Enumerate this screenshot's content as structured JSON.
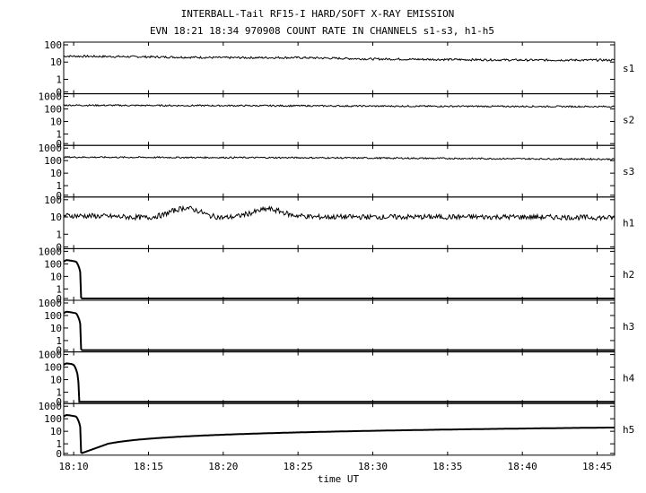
{
  "header": {
    "line1": "INTERBALL-Tail RF15-I HARD/SOFT X-RAY EMISSION",
    "line2": "EVN 18:21 18:34 970908  COUNT RATE IN CHANNELS s1-s3, h1-h5"
  },
  "chart_data": {
    "type": "line",
    "xlabel": "time UT",
    "x_ticks": [
      "18:10",
      "18:15",
      "18:20",
      "18:25",
      "18:30",
      "18:35",
      "18:40",
      "18:45"
    ],
    "xlim": [
      "18:09:20",
      "18:46:10"
    ],
    "yscale": "log",
    "grid": false,
    "panels": [
      {
        "name": "s1",
        "ylim": [
          0,
          100
        ],
        "y_ticks": [
          "100",
          "10",
          "1",
          "0"
        ],
        "x": [
          "18:09:20",
          "18:15",
          "18:20",
          "18:25",
          "18:30",
          "18:35",
          "18:40",
          "18:46:10"
        ],
        "values": [
          22,
          20,
          18,
          18,
          15,
          14,
          13,
          13
        ]
      },
      {
        "name": "s2",
        "ylim": [
          0,
          1000
        ],
        "y_ticks": [
          "1000",
          "100",
          "10",
          "1",
          "0"
        ],
        "x": [
          "18:09:20",
          "18:15",
          "18:20",
          "18:25",
          "18:30",
          "18:35",
          "18:40",
          "18:46:10"
        ],
        "values": [
          200,
          190,
          185,
          180,
          170,
          165,
          160,
          155
        ]
      },
      {
        "name": "s3",
        "ylim": [
          0,
          1000
        ],
        "y_ticks": [
          "1000",
          "100",
          "10",
          "1",
          "0"
        ],
        "x": [
          "18:09:20",
          "18:15",
          "18:20",
          "18:25",
          "18:30",
          "18:35",
          "18:40",
          "18:46:10"
        ],
        "values": [
          190,
          180,
          175,
          170,
          160,
          150,
          140,
          130
        ]
      },
      {
        "name": "h1",
        "ylim": [
          0,
          100
        ],
        "y_ticks": [
          "100",
          "10",
          "1",
          "0"
        ],
        "x": [
          "18:09:20",
          "18:12",
          "18:15",
          "18:16",
          "18:17:30",
          "18:19",
          "18:20",
          "18:21",
          "18:22",
          "18:23",
          "18:24:30",
          "18:26",
          "18:30",
          "18:35",
          "18:40",
          "18:46:10"
        ],
        "values": [
          12,
          11,
          9,
          13,
          35,
          12,
          9,
          11,
          18,
          30,
          13,
          10,
          10,
          10,
          10,
          9
        ]
      },
      {
        "name": "h2",
        "ylim": [
          0,
          1000
        ],
        "y_ticks": [
          "1000",
          "100",
          "10",
          "1",
          "0"
        ],
        "x": [
          "18:09:20",
          "18:09:30",
          "18:09:50",
          "18:10:10",
          "18:10:20",
          "18:10:30",
          "18:46:10"
        ],
        "values": [
          150,
          200,
          180,
          150,
          60,
          0,
          0
        ]
      },
      {
        "name": "h3",
        "ylim": [
          0,
          1000
        ],
        "y_ticks": [
          "1000",
          "100",
          "10",
          "1",
          "0"
        ],
        "x": [
          "18:09:20",
          "18:09:30",
          "18:09:50",
          "18:10:10",
          "18:10:20",
          "18:10:30",
          "18:46:10"
        ],
        "values": [
          150,
          200,
          180,
          150,
          60,
          0,
          0
        ]
      },
      {
        "name": "h4",
        "ylim": [
          0,
          1000
        ],
        "y_ticks": [
          "1000",
          "100",
          "10",
          "1",
          "0"
        ],
        "x": [
          "18:09:20",
          "18:09:30",
          "18:09:50",
          "18:10:00",
          "18:10:10",
          "18:10:20",
          "18:46:10"
        ],
        "values": [
          150,
          200,
          180,
          150,
          60,
          0,
          0
        ]
      },
      {
        "name": "h5",
        "ylim": [
          0,
          1000
        ],
        "y_ticks": [
          "1000",
          "100",
          "10",
          "1",
          "0"
        ],
        "x": [
          "18:09:20",
          "18:09:30",
          "18:09:50",
          "18:10:10",
          "18:10:20",
          "18:10:30",
          "18:46:10"
        ],
        "values": [
          150,
          200,
          180,
          150,
          60,
          0,
          20
        ]
      }
    ]
  }
}
